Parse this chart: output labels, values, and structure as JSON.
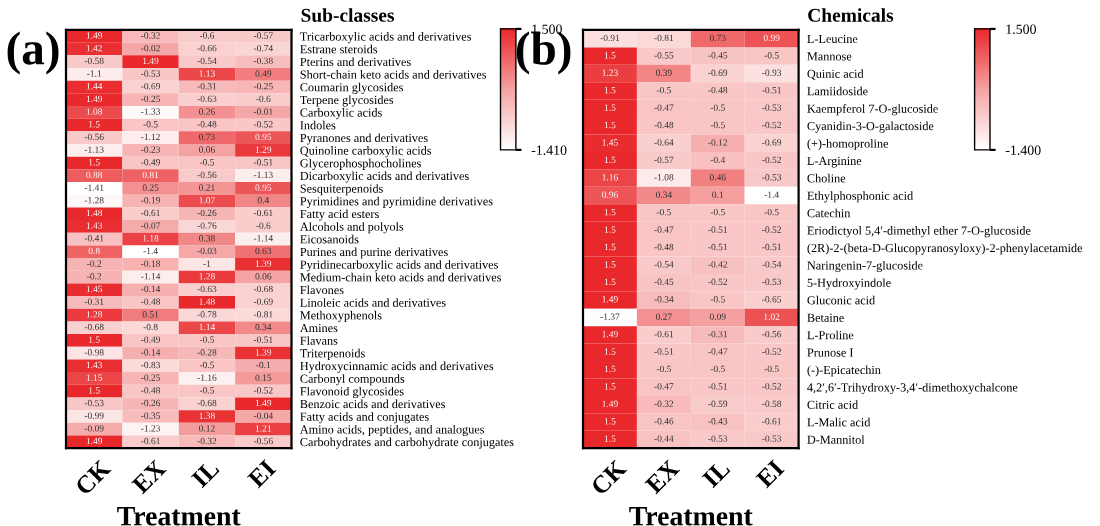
{
  "chart_data": [
    {
      "type": "heatmap",
      "title": "(a)",
      "ylabel": "Sub-classes",
      "xlabel": "Treatment",
      "categories": [
        "CK",
        "EX",
        "IL",
        "EI"
      ],
      "y_categories": [
        "Tricarboxylic acids and derivatives",
        "Estrane steroids",
        "Pterins and derivatives",
        "Short-chain keto acids and derivatives",
        "Coumarin glycosides",
        "Terpene glycosides",
        "Carboxylic acids",
        "Indoles",
        "Pyranones and derivatives",
        "Quinoline carboxylic acids",
        "Glycerophosphocholines",
        "Dicarboxylic acids and derivatives",
        "Sesquiterpenoids",
        "Pyrimidines and pyrimidine derivatives",
        "Fatty acid esters",
        "Alcohols and polyols",
        "Eicosanoids",
        "Purines and purine derivatives",
        "Pyridinecarboxylic acids and derivatives",
        "Medium-chain keto acids and derivatives",
        "Flavones",
        "Linoleic acids and derivatives",
        "Methoxyphenols",
        "Amines",
        "Flavans",
        "Triterpenoids",
        "Hydroxycinnamic acids and derivatives",
        "Carbonyl compounds",
        "Flavonoid glycosides",
        "Benzoic acids and derivatives",
        "Fatty acids and conjugates",
        "Amino acids, peptides, and analogues",
        "Carbohydrates and carbohydrate conjugates"
      ],
      "cells": [
        [
          1.49,
          -0.32,
          -0.6,
          -0.57
        ],
        [
          1.42,
          -0.02,
          -0.66,
          -0.74
        ],
        [
          -0.58,
          1.49,
          -0.54,
          -0.38
        ],
        [
          -1.1,
          -0.53,
          1.13,
          0.49
        ],
        [
          1.44,
          -0.69,
          -0.31,
          -0.25
        ],
        [
          1.49,
          -0.25,
          -0.63,
          -0.6
        ],
        [
          1.08,
          -1.33,
          0.26,
          -0.01
        ],
        [
          1.5,
          -0.5,
          -0.48,
          -0.52
        ],
        [
          -0.56,
          -1.12,
          0.73,
          0.95
        ],
        [
          -1.13,
          -0.23,
          0.06,
          1.29
        ],
        [
          1.5,
          -0.49,
          -0.5,
          -0.51
        ],
        [
          0.88,
          0.81,
          -0.56,
          -1.13
        ],
        [
          -1.41,
          0.25,
          0.21,
          0.95
        ],
        [
          -1.28,
          -0.19,
          1.07,
          0.4
        ],
        [
          1.48,
          -0.61,
          -0.26,
          -0.61
        ],
        [
          1.43,
          -0.07,
          -0.76,
          -0.6
        ],
        [
          -0.41,
          1.18,
          0.38,
          -1.14
        ],
        [
          0.8,
          -1.4,
          -0.03,
          0.63
        ],
        [
          -0.2,
          -0.18,
          -1,
          1.39
        ],
        [
          -0.2,
          -1.14,
          1.28,
          0.06
        ],
        [
          1.45,
          -0.14,
          -0.63,
          -0.68
        ],
        [
          -0.31,
          -0.48,
          1.48,
          -0.69
        ],
        [
          1.28,
          0.51,
          -0.78,
          -0.81
        ],
        [
          -0.68,
          -0.8,
          1.14,
          0.34
        ],
        [
          1.5,
          -0.49,
          -0.5,
          -0.51
        ],
        [
          -0.98,
          -0.14,
          -0.28,
          1.39
        ],
        [
          1.43,
          -0.83,
          -0.5,
          -0.1
        ],
        [
          1.15,
          -0.25,
          -1.16,
          0.15
        ],
        [
          1.5,
          -0.48,
          -0.5,
          -0.52
        ],
        [
          -0.53,
          -0.26,
          -0.68,
          1.49
        ],
        [
          -0.99,
          -0.35,
          1.38,
          -0.04
        ],
        [
          -0.09,
          -1.23,
          0.12,
          1.21
        ],
        [
          1.49,
          -0.61,
          -0.32,
          -0.56
        ]
      ],
      "data_labels": true,
      "clim": [
        -1.41,
        1.5
      ],
      "cticks": [
        {
          "value": 1.5,
          "label": "1.500"
        },
        {
          "value": -1.41,
          "label": "-1.410"
        }
      ]
    },
    {
      "type": "heatmap",
      "title": "(b)",
      "ylabel": "Chemicals",
      "xlabel": "Treatment",
      "categories": [
        "CK",
        "EX",
        "IL",
        "EI"
      ],
      "y_categories": [
        "L-Leucine",
        "Mannose",
        "Quinic acid",
        "Lamiidoside",
        "Kaempferol 7-O-glucoside",
        "Cyanidin-3-O-galactoside",
        "(+)-homoproline",
        "L-Arginine",
        "Choline",
        "Ethylphosphonic acid",
        "Catechin",
        "Eriodictyol 5,4′-dimethyl ether 7-O-glucoside",
        "(2R)-2-(beta-D-Glucopyranosyloxy)-2-phenylacetamide",
        "Naringenin-7-glucoside",
        "5-Hydroxyindole",
        "Gluconic acid",
        "Betaine",
        "L-Proline",
        "Prunose I",
        "(-)-Epicatechin",
        "4,2′,6′-Trihydroxy-3,4′-dimethoxychalcone",
        "Citric acid",
        "L-Malic acid",
        "D-Mannitol"
      ],
      "cells": [
        [
          -0.91,
          -0.81,
          0.73,
          0.99
        ],
        [
          1.5,
          -0.55,
          -0.45,
          -0.5
        ],
        [
          1.23,
          0.39,
          -0.69,
          -0.93
        ],
        [
          1.5,
          -0.5,
          -0.48,
          -0.51
        ],
        [
          1.5,
          -0.47,
          -0.5,
          -0.53
        ],
        [
          1.5,
          -0.48,
          -0.5,
          -0.52
        ],
        [
          1.45,
          -0.64,
          -0.12,
          -0.69
        ],
        [
          1.5,
          -0.57,
          -0.4,
          -0.52
        ],
        [
          1.16,
          -1.08,
          0.46,
          -0.53
        ],
        [
          0.96,
          0.34,
          0.1,
          -1.4
        ],
        [
          1.5,
          -0.5,
          -0.5,
          -0.5
        ],
        [
          1.5,
          -0.47,
          -0.51,
          -0.52
        ],
        [
          1.5,
          -0.48,
          -0.51,
          -0.51
        ],
        [
          1.5,
          -0.54,
          -0.42,
          -0.54
        ],
        [
          1.5,
          -0.45,
          -0.52,
          -0.53
        ],
        [
          1.49,
          -0.34,
          -0.5,
          -0.65
        ],
        [
          -1.37,
          0.27,
          0.09,
          1.02
        ],
        [
          1.49,
          -0.61,
          -0.31,
          -0.56
        ],
        [
          1.5,
          -0.51,
          -0.47,
          -0.52
        ],
        [
          1.5,
          -0.5,
          -0.5,
          -0.5
        ],
        [
          1.5,
          -0.47,
          -0.51,
          -0.52
        ],
        [
          1.49,
          -0.32,
          -0.59,
          -0.58
        ],
        [
          1.5,
          -0.46,
          -0.43,
          -0.61
        ],
        [
          1.5,
          -0.44,
          -0.53,
          -0.53
        ]
      ],
      "data_labels": true,
      "clim": [
        -1.4,
        1.5
      ],
      "cticks": [
        {
          "value": 1.5,
          "label": "1.500"
        },
        {
          "value": -1.4,
          "label": "-1.400"
        }
      ]
    }
  ]
}
